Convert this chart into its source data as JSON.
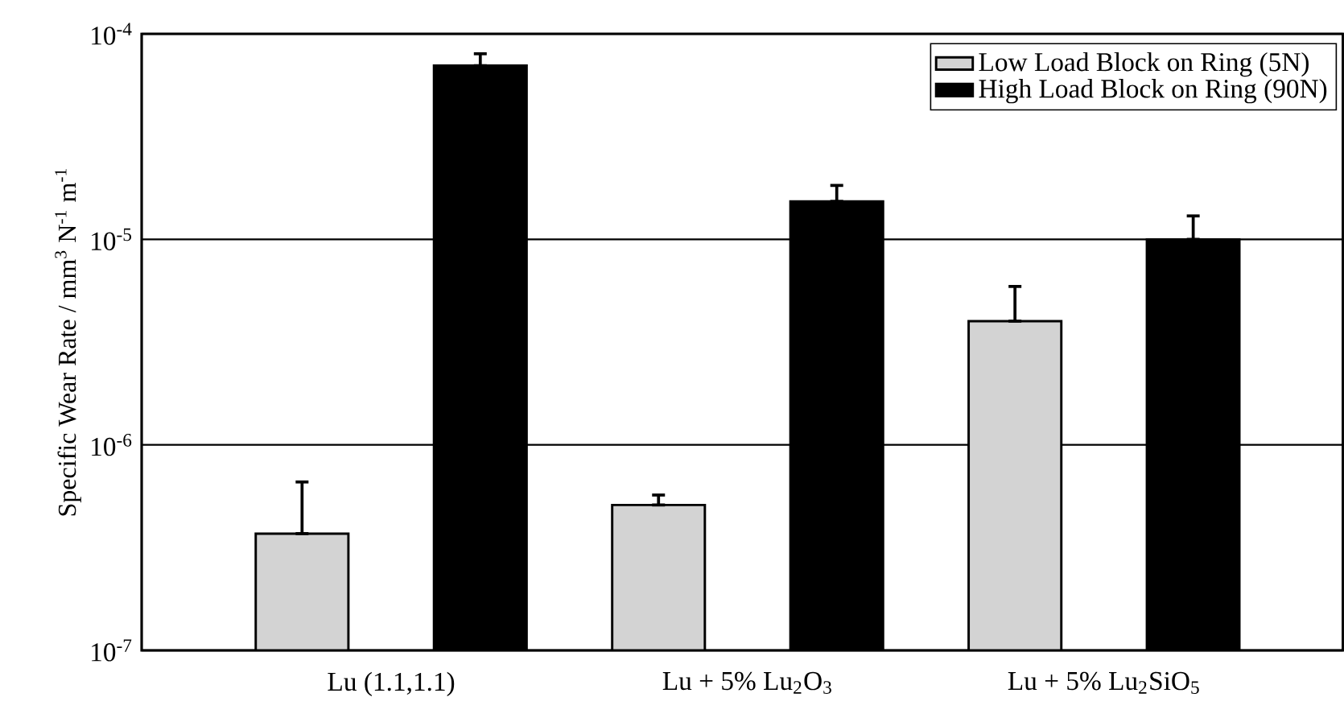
{
  "chart_data": {
    "type": "bar",
    "ylabel": "Specific Wear Rate / mm$^{3}$ N$^{-1}$ m$^{-1}$",
    "categories": [
      "Lu (1.1,1.1)",
      "Lu + 5% Lu$_{2}$O$_{3}$",
      "Lu + 5% Lu$_{2}$SiO$_{5}$"
    ],
    "series": [
      {
        "name": "Low Load Block on Ring  (5N)",
        "color": "#d3d3d3",
        "values": [
          3.7e-07,
          5.1e-07,
          4e-06
        ],
        "errors": [
          [
            3.7e-07,
            6.6e-07
          ],
          [
            5.1e-07,
            5.7e-07
          ],
          [
            4e-06,
            5.9e-06
          ]
        ]
      },
      {
        "name": "High Load Block on Ring  (90N)",
        "color": "#000000",
        "values": [
          7e-05,
          1.53e-05,
          1e-05
        ],
        "errors": [
          [
            7e-05,
            8e-05
          ],
          [
            1.53e-05,
            1.83e-05
          ],
          [
            1e-05,
            1.3e-05
          ]
        ]
      }
    ],
    "log": true,
    "ylim": [
      1e-07,
      0.0001
    ],
    "yticks": [
      {
        "value": 1e-07,
        "label": "10$^{-7}$"
      },
      {
        "value": 1e-06,
        "label": "10$^{-6}$"
      },
      {
        "value": 1e-05,
        "label": "10$^{-5}$"
      },
      {
        "value": 0.0001,
        "label": "10$^{-4}$"
      }
    ],
    "grid": "y",
    "legend": "top right"
  }
}
